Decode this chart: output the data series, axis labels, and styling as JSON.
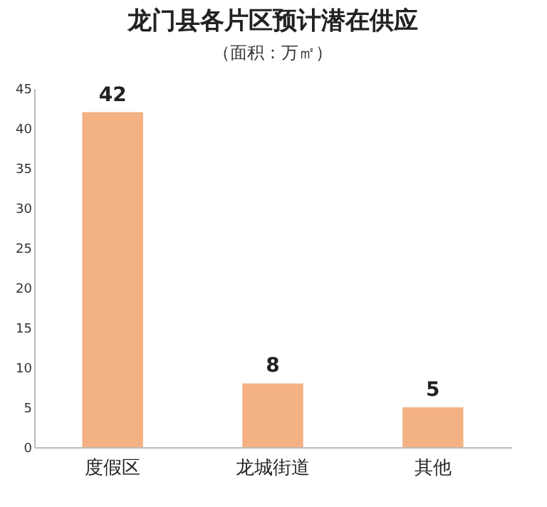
{
  "chart_data": {
    "type": "bar",
    "title": "龙门县各片区预计潜在供应",
    "subtitle": "（面积：万㎡）",
    "categories": [
      "度假区",
      "龙城街道",
      "其他"
    ],
    "values": [
      42,
      8,
      5
    ],
    "color": "#f4b183",
    "ylim": [
      0,
      45
    ],
    "yticks": [
      0,
      5,
      10,
      15,
      20,
      25,
      30,
      35,
      40,
      45
    ],
    "grid": false,
    "data_labels": true
  }
}
